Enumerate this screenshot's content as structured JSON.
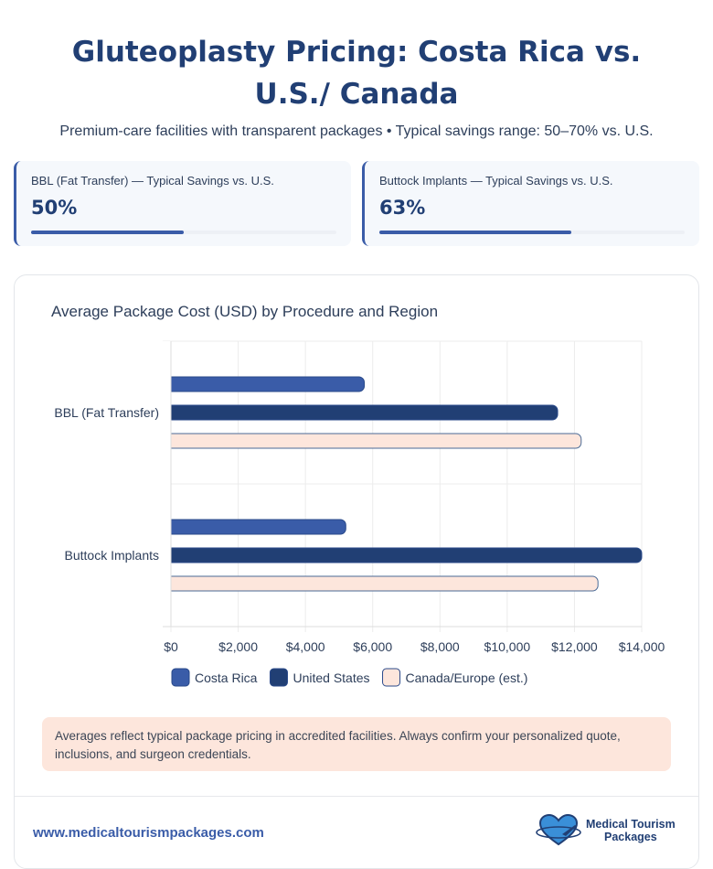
{
  "header": {
    "title": "Gluteoplasty Pricing: Costa Rica vs. U.S./ Canada",
    "subtitle": "Premium-care facilities with transparent packages • Typical savings range: 50–70% vs. U.S."
  },
  "cards": [
    {
      "label": "BBL (Fat Transfer) — Typical Savings vs. U.S.",
      "value": "50%",
      "percent": 50
    },
    {
      "label": "Buttock Implants — Typical Savings vs. U.S.",
      "value": "63%",
      "percent": 63
    }
  ],
  "chart_data": {
    "type": "bar",
    "orientation": "horizontal",
    "title": "Average Package Cost (USD) by Procedure and Region",
    "categories": [
      "BBL (Fat Transfer)",
      "Buttock Implants"
    ],
    "series": [
      {
        "name": "Costa Rica",
        "values": [
          5750,
          5200
        ],
        "color": "#3a5ca8"
      },
      {
        "name": "United States",
        "values": [
          11500,
          14000
        ],
        "color": "#213f74"
      },
      {
        "name": "Canada/Europe (est.)",
        "values": [
          12200,
          12700
        ],
        "color": "#fde6dc"
      }
    ],
    "xlim": [
      0,
      14000
    ],
    "xticks": [
      "$0",
      "$2,000",
      "$4,000",
      "$6,000",
      "$8,000",
      "$10,000",
      "$12,000",
      "$14,000"
    ],
    "grid": true,
    "legend": "bottom"
  },
  "note": "Averages reflect typical package pricing in accredited facilities. Always confirm your personalized quote, inclusions, and surgeon credentials.",
  "footer": {
    "url": "www.medicaltourismpackages.com",
    "logo_line1": "Medical Tourism",
    "logo_line2": "Packages"
  }
}
